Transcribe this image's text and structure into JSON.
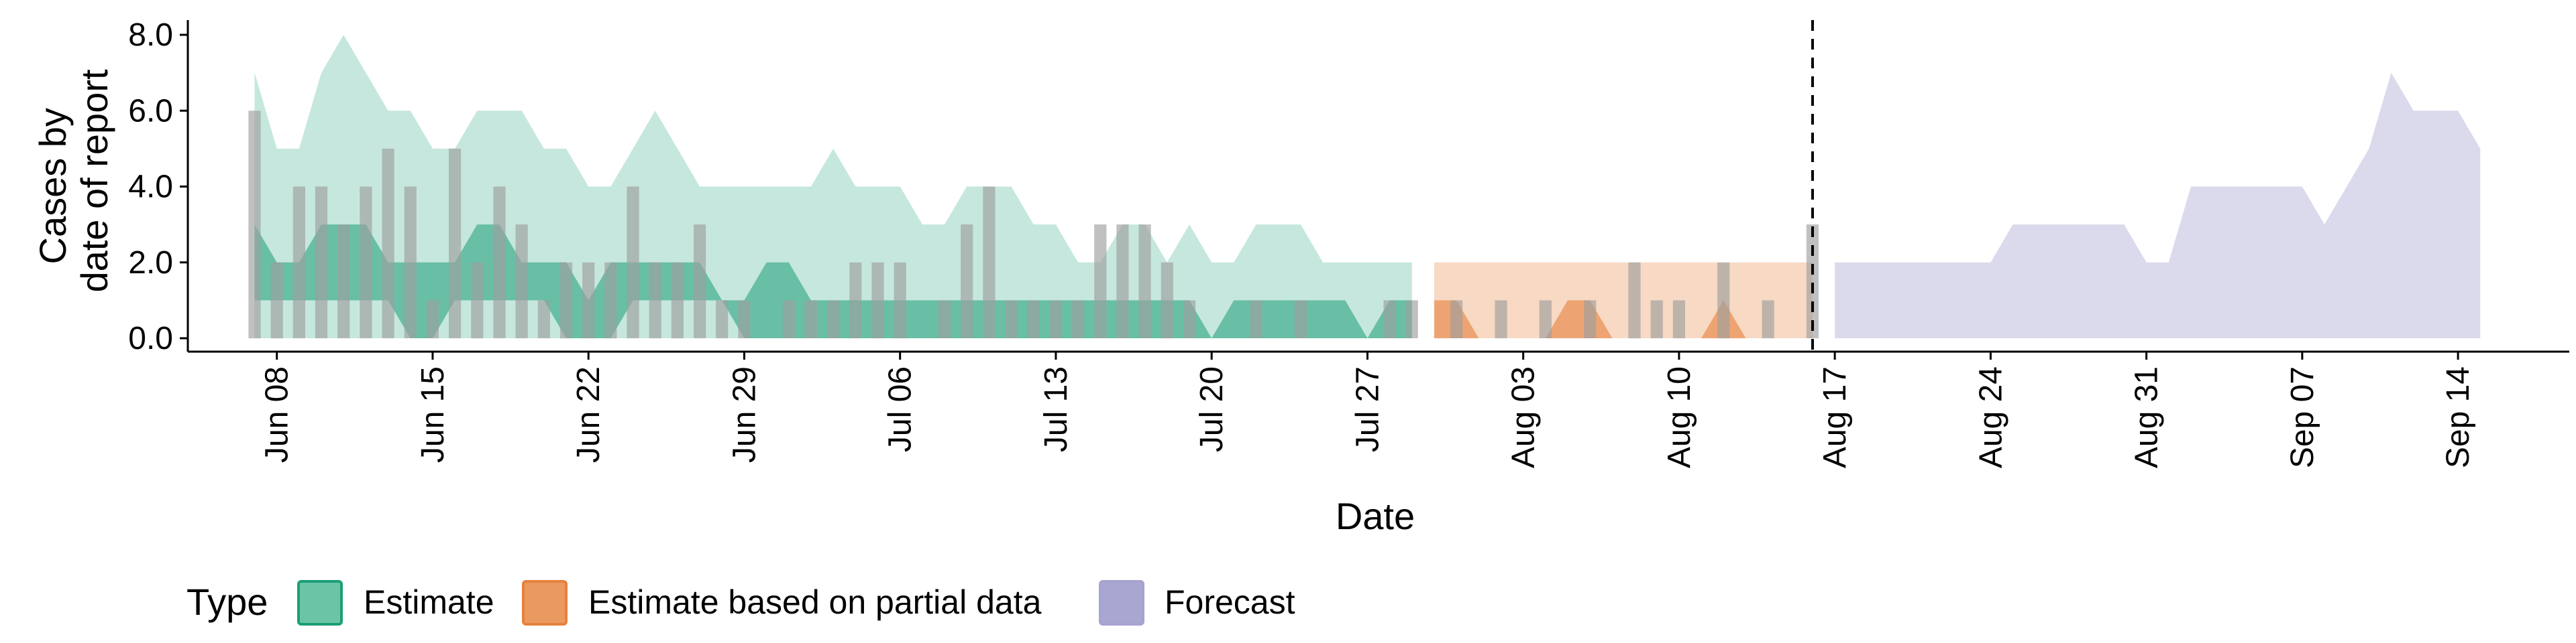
{
  "chart_data": {
    "type": "area",
    "xlabel": "Date",
    "ylabel": [
      "Cases by",
      "date of report"
    ],
    "ylim": [
      0,
      8.0
    ],
    "y_ticks": [
      0,
      2,
      4,
      6,
      8
    ],
    "y_tick_labels": [
      "0.0",
      "2.0",
      "4.0",
      "6.0",
      "8.0"
    ],
    "x_range": [
      "2020-06-04",
      "2020-09-19"
    ],
    "x_ticks": [
      "2020-06-08",
      "2020-06-15",
      "2020-06-22",
      "2020-06-29",
      "2020-07-06",
      "2020-07-13",
      "2020-07-20",
      "2020-07-27",
      "2020-08-03",
      "2020-08-10",
      "2020-08-17",
      "2020-08-24",
      "2020-08-31",
      "2020-09-07",
      "2020-09-14"
    ],
    "x_tick_labels": [
      "Jun 08",
      "Jun 15",
      "Jun 22",
      "Jun 29",
      "Jul 06",
      "Jul 13",
      "Jul 20",
      "Jul 27",
      "Aug 03",
      "Aug 10",
      "Aug 17",
      "Aug 24",
      "Aug 31",
      "Sep 07",
      "Sep 14"
    ],
    "vline": "2020-08-16",
    "grid": false,
    "legend": {
      "position": "bottom-left",
      "title": "Type",
      "entries": [
        "Estimate",
        "Estimate based on partial data",
        "Forecast"
      ]
    },
    "colors": {
      "estimate": "#1b9e77",
      "partial": "#e6813c",
      "forecast": "#a6a3cf",
      "observed_bars": "#9e9e9e",
      "estimate_legend": "#6cc4a6",
      "partial_legend": "#ea995f",
      "forecast_legend": "#a9a6d1"
    },
    "observed": {
      "x": [
        "2020-06-07",
        "2020-06-08",
        "2020-06-09",
        "2020-06-10",
        "2020-06-11",
        "2020-06-12",
        "2020-06-13",
        "2020-06-14",
        "2020-06-15",
        "2020-06-16",
        "2020-06-17",
        "2020-06-18",
        "2020-06-19",
        "2020-06-20",
        "2020-06-21",
        "2020-06-22",
        "2020-06-23",
        "2020-06-24",
        "2020-06-25",
        "2020-06-26",
        "2020-06-27",
        "2020-06-28",
        "2020-06-29",
        "2020-06-30",
        "2020-07-01",
        "2020-07-02",
        "2020-07-03",
        "2020-07-04",
        "2020-07-05",
        "2020-07-06",
        "2020-07-07",
        "2020-07-08",
        "2020-07-09",
        "2020-07-10",
        "2020-07-11",
        "2020-07-12",
        "2020-07-13",
        "2020-07-14",
        "2020-07-15",
        "2020-07-16",
        "2020-07-17",
        "2020-07-18",
        "2020-07-19",
        "2020-07-20",
        "2020-07-21",
        "2020-07-22",
        "2020-07-23",
        "2020-07-24",
        "2020-07-25",
        "2020-07-26",
        "2020-07-27",
        "2020-07-28",
        "2020-07-29",
        "2020-07-30",
        "2020-07-31",
        "2020-08-01",
        "2020-08-02",
        "2020-08-03",
        "2020-08-04",
        "2020-08-05",
        "2020-08-06",
        "2020-08-07",
        "2020-08-08",
        "2020-08-09",
        "2020-08-10",
        "2020-08-11",
        "2020-08-12",
        "2020-08-13",
        "2020-08-14",
        "2020-08-15",
        "2020-08-16"
      ],
      "values": [
        6,
        2,
        4,
        4,
        3,
        4,
        5,
        4,
        1,
        5,
        2,
        4,
        3,
        1,
        2,
        2,
        2,
        4,
        2,
        2,
        3,
        1,
        1,
        0,
        1,
        1,
        1,
        2,
        2,
        2,
        0,
        1,
        3,
        4,
        1,
        1,
        1,
        1,
        3,
        3,
        3,
        2,
        1,
        0,
        0,
        1,
        0,
        1,
        0,
        0,
        0,
        1,
        1,
        0,
        1,
        0,
        1,
        0,
        1,
        0,
        1,
        0,
        2,
        1,
        1,
        0,
        2,
        0,
        1,
        0,
        3
      ]
    },
    "estimate": {
      "x": [
        "2020-06-07",
        "2020-06-08",
        "2020-06-09",
        "2020-06-10",
        "2020-06-11",
        "2020-06-12",
        "2020-06-13",
        "2020-06-14",
        "2020-06-15",
        "2020-06-16",
        "2020-06-17",
        "2020-06-18",
        "2020-06-19",
        "2020-06-20",
        "2020-06-21",
        "2020-06-22",
        "2020-06-23",
        "2020-06-24",
        "2020-06-25",
        "2020-06-26",
        "2020-06-27",
        "2020-06-28",
        "2020-06-29",
        "2020-06-30",
        "2020-07-01",
        "2020-07-02",
        "2020-07-03",
        "2020-07-04",
        "2020-07-05",
        "2020-07-06",
        "2020-07-07",
        "2020-07-08",
        "2020-07-09",
        "2020-07-10",
        "2020-07-11",
        "2020-07-12",
        "2020-07-13",
        "2020-07-14",
        "2020-07-15",
        "2020-07-16",
        "2020-07-17",
        "2020-07-18",
        "2020-07-19",
        "2020-07-20",
        "2020-07-21",
        "2020-07-22",
        "2020-07-23",
        "2020-07-24",
        "2020-07-25",
        "2020-07-26",
        "2020-07-27",
        "2020-07-28",
        "2020-07-29"
      ],
      "lower_90": [
        0,
        0,
        0,
        0,
        0,
        0,
        0,
        0,
        0,
        0,
        0,
        0,
        0,
        0,
        0,
        0,
        0,
        0,
        0,
        0,
        0,
        0,
        0,
        0,
        0,
        0,
        0,
        0,
        0,
        0,
        0,
        0,
        0,
        0,
        0,
        0,
        0,
        0,
        0,
        0,
        0,
        0,
        0,
        0,
        0,
        0,
        0,
        0,
        0,
        0,
        0,
        0,
        0
      ],
      "upper_90": [
        7,
        5,
        5,
        7,
        8,
        7,
        6,
        6,
        5,
        5,
        6,
        6,
        6,
        5,
        5,
        4,
        4,
        5,
        6,
        5,
        4,
        4,
        4,
        4,
        4,
        4,
        5,
        4,
        4,
        4,
        3,
        3,
        4,
        4,
        4,
        3,
        3,
        2,
        2,
        3,
        3,
        2,
        3,
        2,
        2,
        3,
        3,
        3,
        2,
        2,
        2,
        2,
        2
      ],
      "lower_50": [
        1,
        1,
        1,
        1,
        1,
        1,
        1,
        0,
        0,
        1,
        1,
        1,
        1,
        1,
        0,
        0,
        0,
        1,
        1,
        1,
        1,
        1,
        0,
        0,
        0,
        0,
        0,
        0,
        0,
        0,
        0,
        0,
        0,
        0,
        0,
        0,
        0,
        0,
        0,
        0,
        0,
        0,
        0,
        0,
        0,
        0,
        0,
        0,
        0,
        0,
        0,
        0,
        0
      ],
      "upper_50": [
        3,
        2,
        2,
        3,
        3,
        3,
        2,
        2,
        2,
        2,
        3,
        3,
        2,
        2,
        2,
        1,
        2,
        2,
        2,
        2,
        2,
        1,
        1,
        2,
        2,
        1,
        1,
        1,
        1,
        1,
        1,
        1,
        1,
        1,
        1,
        1,
        1,
        1,
        1,
        1,
        1,
        1,
        1,
        0,
        1,
        1,
        1,
        1,
        1,
        1,
        0,
        1,
        1
      ]
    },
    "partial": {
      "x": [
        "2020-07-30",
        "2020-07-31",
        "2020-08-01",
        "2020-08-02",
        "2020-08-03",
        "2020-08-04",
        "2020-08-05",
        "2020-08-06",
        "2020-08-07",
        "2020-08-08",
        "2020-08-09",
        "2020-08-10",
        "2020-08-11",
        "2020-08-12",
        "2020-08-13",
        "2020-08-14",
        "2020-08-15",
        "2020-08-16"
      ],
      "lower_90": [
        0,
        0,
        0,
        0,
        0,
        0,
        0,
        0,
        0,
        0,
        0,
        0,
        0,
        0,
        0,
        0,
        0,
        0
      ],
      "upper_90": [
        2,
        2,
        2,
        2,
        2,
        2,
        2,
        2,
        2,
        2,
        2,
        2,
        2,
        2,
        2,
        2,
        2,
        2
      ],
      "lower_50": [
        0,
        0,
        0,
        0,
        0,
        0,
        0,
        0,
        0,
        0,
        0,
        0,
        0,
        0,
        0,
        0,
        0,
        0
      ],
      "upper_50": [
        1,
        1,
        0,
        0,
        0,
        0,
        1,
        1,
        0,
        0,
        0,
        0,
        0,
        1,
        0,
        0,
        0,
        0
      ]
    },
    "forecast": {
      "x": [
        "2020-08-17",
        "2020-08-18",
        "2020-08-19",
        "2020-08-20",
        "2020-08-21",
        "2020-08-22",
        "2020-08-23",
        "2020-08-24",
        "2020-08-25",
        "2020-08-26",
        "2020-08-27",
        "2020-08-28",
        "2020-08-29",
        "2020-08-30",
        "2020-08-31",
        "2020-09-01",
        "2020-09-02",
        "2020-09-03",
        "2020-09-04",
        "2020-09-05",
        "2020-09-06",
        "2020-09-07",
        "2020-09-08",
        "2020-09-09",
        "2020-09-10",
        "2020-09-11",
        "2020-09-12",
        "2020-09-13",
        "2020-09-14",
        "2020-09-15"
      ],
      "lower_90": [
        0,
        0,
        0,
        0,
        0,
        0,
        0,
        0,
        0,
        0,
        0,
        0,
        0,
        0,
        0,
        0,
        0,
        0,
        0,
        0,
        0,
        0,
        0,
        0,
        0,
        0,
        0,
        0,
        0,
        0
      ],
      "upper_90": [
        2,
        2,
        2,
        2,
        2,
        2,
        2,
        2,
        3,
        3,
        3,
        3,
        3,
        3,
        2,
        2,
        4,
        4,
        4,
        4,
        4,
        4,
        3,
        4,
        5,
        7,
        6,
        6,
        6,
        5
      ]
    }
  }
}
